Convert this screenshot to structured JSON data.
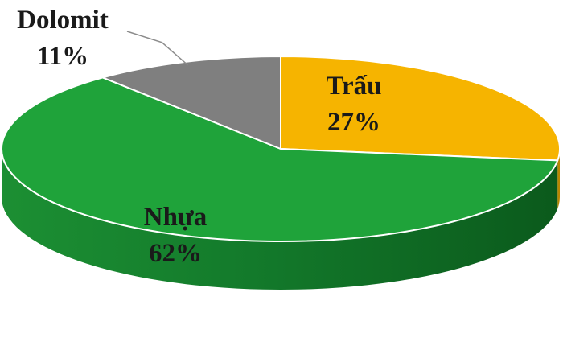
{
  "chart_data": {
    "type": "pie",
    "title": "",
    "categories": [
      "Trấu",
      "Nhựa",
      "Dolomit"
    ],
    "values": [
      27,
      62,
      11
    ],
    "value_labels": [
      "27%",
      "62%",
      "11%"
    ],
    "unit": "%",
    "legend": "none",
    "colors": [
      "#F6B400",
      "#1FA33A",
      "#7F7F7F"
    ],
    "side_colors": [
      "#B98600",
      "#137028",
      "#555555"
    ],
    "style": "3d"
  }
}
